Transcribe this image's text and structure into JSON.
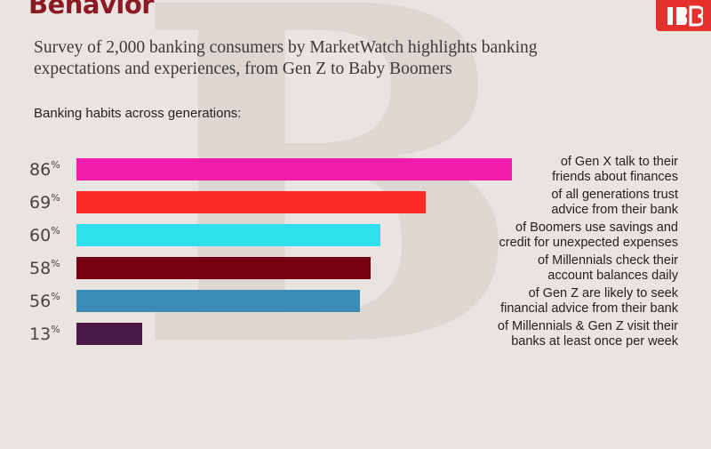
{
  "header": {
    "title": "Behavior",
    "subtitle": "Survey of 2,000 banking consumers by MarketWatch highlights banking expectations and experiences, from Gen Z to Baby Boomers",
    "section_label": "Banking habits across generations:",
    "logo_icon": "bank-logo-icon",
    "watermark_text": "B"
  },
  "colors": {
    "background": "#e9e4e0",
    "title": "#8b1a25",
    "logo": "#e5302b"
  },
  "chart_data": {
    "type": "bar",
    "orientation": "horizontal",
    "title": "Banking habits across generations:",
    "ylim": [
      0,
      100
    ],
    "unit": "%",
    "grid": false,
    "categories": [
      "of Gen X talk to their friends about finances",
      "of all generations trust advice from their bank",
      "of Boomers use savings and credit for unexpected expenses",
      "of Millennials check their account balances daily",
      "of Gen Z are likely to seek financial advice from their bank",
      "of Millennials & Gen Z visit their banks at least once per week"
    ],
    "values": [
      86,
      69,
      60,
      58,
      56,
      13
    ],
    "bars": [
      {
        "value": "86",
        "unit": "%",
        "line1": "of Gen X talk to their",
        "line2": "friends about finances",
        "color": "#f41cad"
      },
      {
        "value": "69",
        "unit": "%",
        "line1": "of all generations trust",
        "line2": "advice from their bank",
        "color": "#fd2a25"
      },
      {
        "value": "60",
        "unit": "%",
        "line1": "of Boomers use savings and",
        "line2": "credit for unexpected expenses",
        "color": "#2fe0ec"
      },
      {
        "value": "58",
        "unit": "%",
        "line1": "of Millennials check their",
        "line2": "account balances daily",
        "color": "#770010"
      },
      {
        "value": "56",
        "unit": "%",
        "line1": "of Gen Z are likely to seek",
        "line2": "financial advice from their bank",
        "color": "#3a8bb5"
      },
      {
        "value": "13",
        "unit": "%",
        "line1": "of Millennials & Gen Z visit their",
        "line2": "banks at least once per week",
        "color": "#4b1a48"
      }
    ]
  }
}
